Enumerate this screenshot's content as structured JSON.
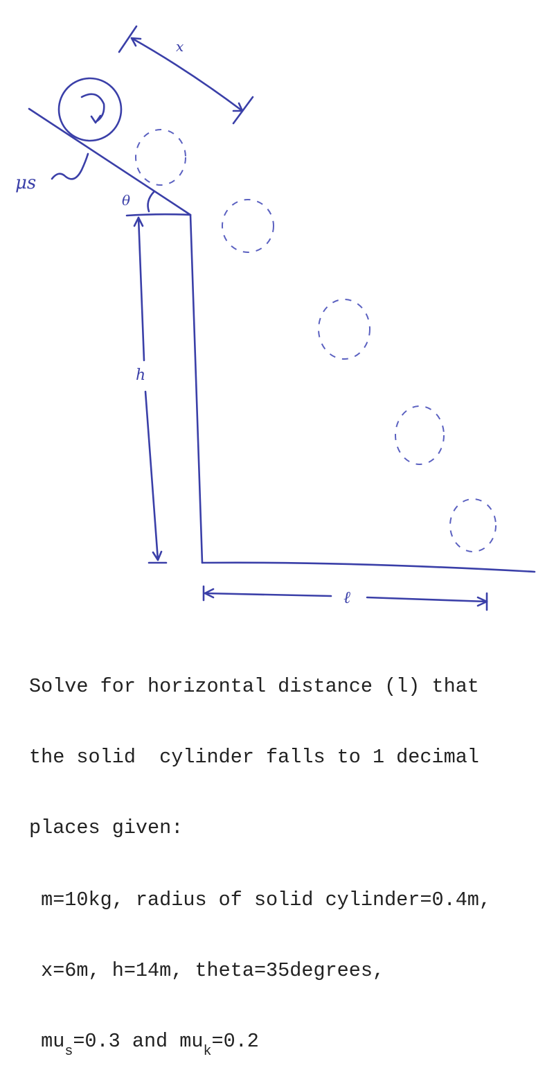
{
  "diagram": {
    "ink_color": "#3a3fa8",
    "labels": {
      "x": "x",
      "theta": "θ",
      "mu_s": "μs",
      "h": "h",
      "l": "ℓ"
    }
  },
  "problem": {
    "lines": [
      "Solve for horizontal distance (l) that",
      "the solid  cylinder falls to 1 decimal",
      "places given:"
    ],
    "given_1": " m=10kg, radius of solid cylinder=0.4m,",
    "given_2": " x=6m, h=14m, theta=35degrees,",
    "mu_s_prefix": " mu",
    "mu_s_sub": "s",
    "mu_s_value": "=0.3 and mu",
    "mu_k_sub": "k",
    "mu_k_value": "=0.2"
  }
}
